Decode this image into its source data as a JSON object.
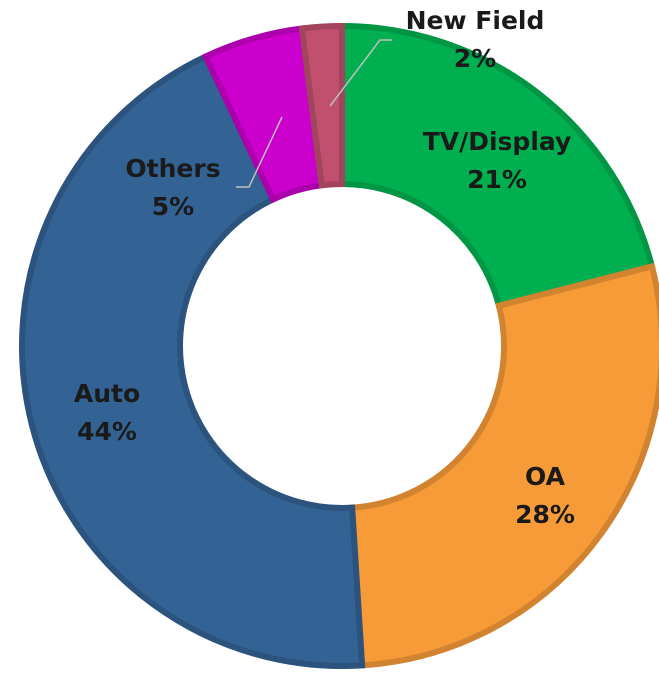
{
  "chart_data": {
    "type": "donut",
    "categories": [
      "TV/Display",
      "OA",
      "Auto",
      "Others",
      "New Field"
    ],
    "values": [
      21,
      28,
      44,
      5,
      2
    ],
    "value_labels": [
      "21%",
      "28%",
      "44%",
      "5%",
      "2%"
    ],
    "colors": [
      "#00b050",
      "#f79a38",
      "#336294",
      "#cc00cc",
      "#c0506e"
    ]
  }
}
